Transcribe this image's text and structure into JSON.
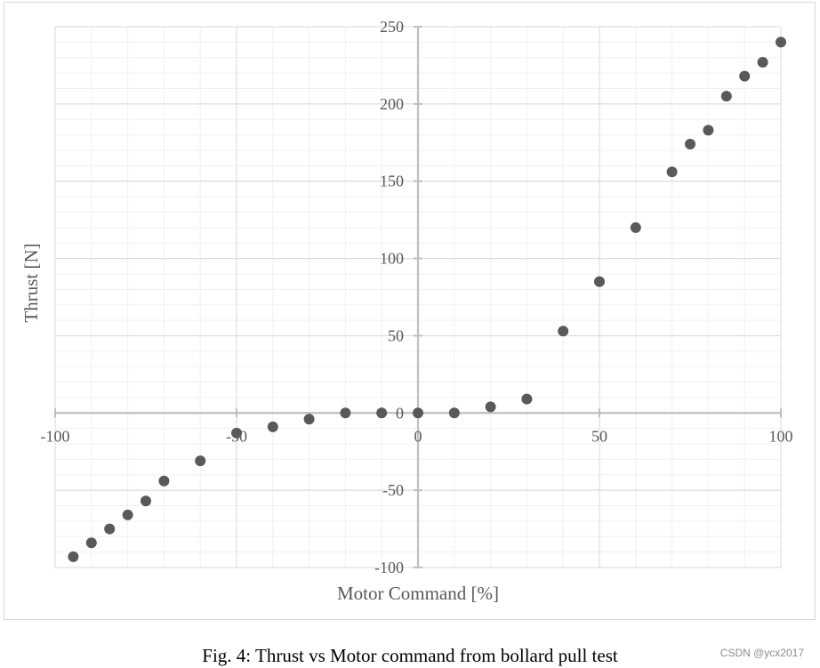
{
  "caption": "Fig. 4: Thrust vs Motor command from bollard pull test",
  "watermark": "CSDN @ycx2017",
  "colors": {
    "marker": "#595959",
    "axis": "#bfbfbf",
    "major_grid": "#d9d9d9",
    "minor_grid": "#f0f0f0",
    "text": "#595959",
    "frame": "#d9d9d9"
  },
  "chart_data": {
    "type": "scatter",
    "title": "",
    "xlabel": "Motor Command [%]",
    "ylabel": "Thrust [N]",
    "xlim": [
      -100,
      100
    ],
    "ylim": [
      -100,
      250
    ],
    "x_major_step": 50,
    "y_major_step": 50,
    "grid": true,
    "legend": "none",
    "x_ticks": [
      "-100",
      "-50",
      "0",
      "50",
      "100"
    ],
    "y_ticks": [
      "-100",
      "-50",
      "0",
      "50",
      "100",
      "150",
      "200",
      "250"
    ],
    "points": [
      {
        "x": -95,
        "y": -93
      },
      {
        "x": -90,
        "y": -84
      },
      {
        "x": -85,
        "y": -75
      },
      {
        "x": -80,
        "y": -66
      },
      {
        "x": -75,
        "y": -57
      },
      {
        "x": -70,
        "y": -44
      },
      {
        "x": -60,
        "y": -31
      },
      {
        "x": -50,
        "y": -13
      },
      {
        "x": -40,
        "y": -9
      },
      {
        "x": -30,
        "y": -4
      },
      {
        "x": -20,
        "y": 0
      },
      {
        "x": -10,
        "y": 0
      },
      {
        "x": 0,
        "y": 0
      },
      {
        "x": 10,
        "y": 0
      },
      {
        "x": 20,
        "y": 4
      },
      {
        "x": 30,
        "y": 9
      },
      {
        "x": 40,
        "y": 53
      },
      {
        "x": 50,
        "y": 85
      },
      {
        "x": 60,
        "y": 120
      },
      {
        "x": 70,
        "y": 156
      },
      {
        "x": 75,
        "y": 174
      },
      {
        "x": 80,
        "y": 183
      },
      {
        "x": 85,
        "y": 205
      },
      {
        "x": 90,
        "y": 218
      },
      {
        "x": 95,
        "y": 227
      },
      {
        "x": 100,
        "y": 240
      }
    ]
  }
}
